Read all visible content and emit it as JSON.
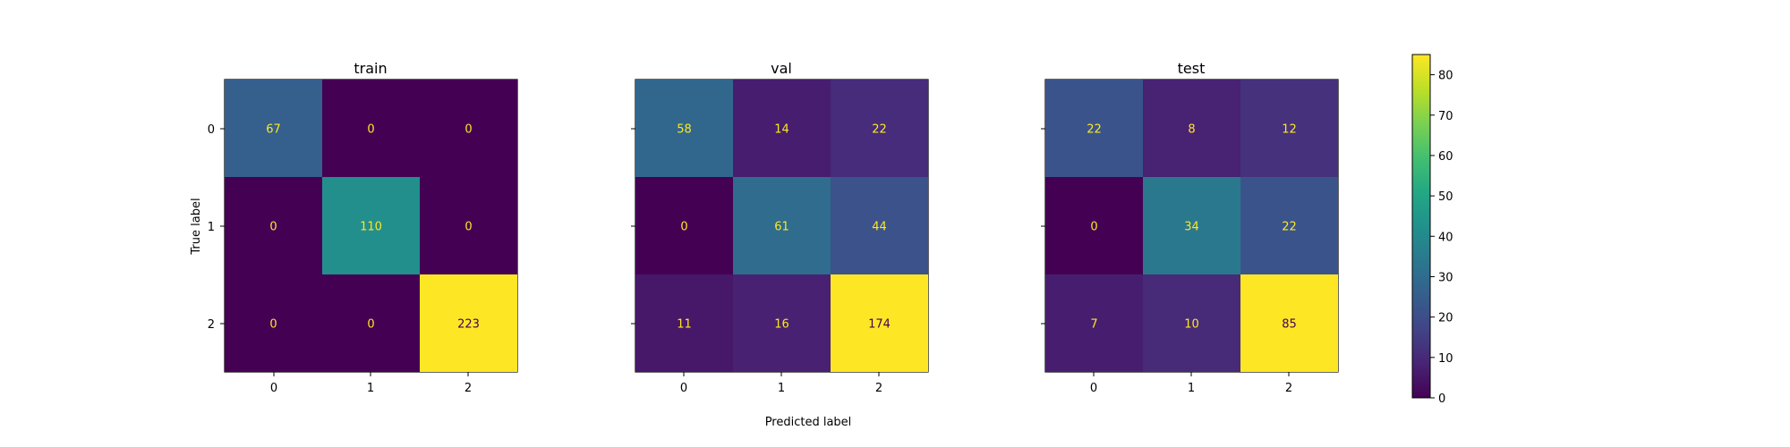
{
  "chart_data": {
    "type": "heatmap",
    "colormap": "viridis",
    "shared_xlabel": "Predicted label",
    "shared_ylabel": "True label",
    "tick_labels": [
      "0",
      "1",
      "2"
    ],
    "color_scale": {
      "min": 0,
      "max": 85,
      "ticks": [
        0,
        10,
        20,
        30,
        40,
        50,
        60,
        70,
        80
      ],
      "tick_labels": [
        "0",
        "10",
        "20",
        "30",
        "40",
        "50",
        "60",
        "70",
        "80"
      ]
    },
    "panels": [
      {
        "title": "train",
        "matrix": [
          [
            67,
            0,
            0
          ],
          [
            0,
            110,
            0
          ],
          [
            0,
            0,
            223
          ]
        ]
      },
      {
        "title": "val",
        "matrix": [
          [
            58,
            14,
            22
          ],
          [
            0,
            61,
            44
          ],
          [
            11,
            16,
            174
          ]
        ]
      },
      {
        "title": "test",
        "matrix": [
          [
            22,
            8,
            12
          ],
          [
            0,
            34,
            22
          ],
          [
            7,
            10,
            85
          ]
        ]
      }
    ]
  }
}
